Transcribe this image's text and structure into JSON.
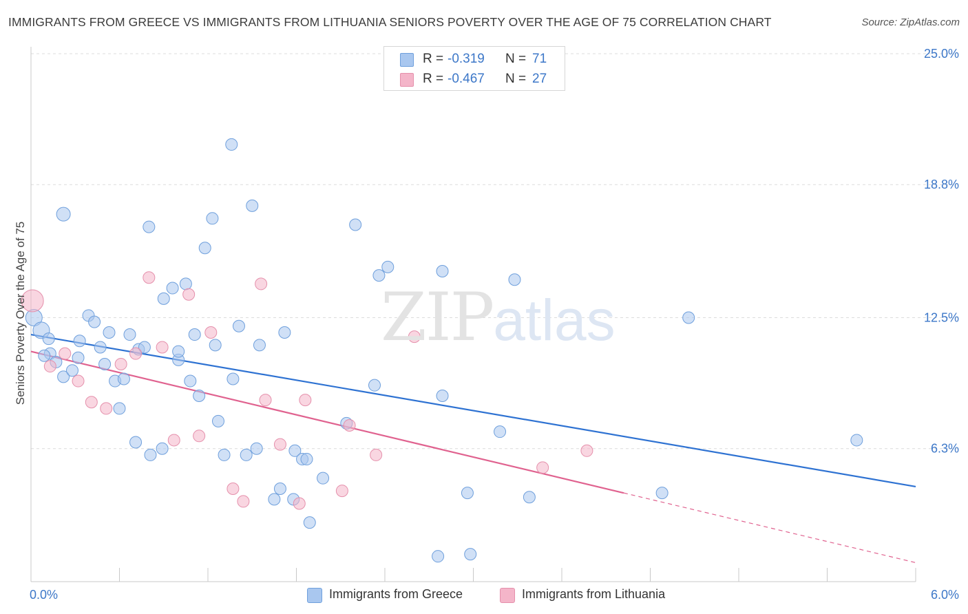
{
  "title": "IMMIGRANTS FROM GREECE VS IMMIGRANTS FROM LITHUANIA SENIORS POVERTY OVER THE AGE OF 75 CORRELATION CHART",
  "source": "Source: ZipAtlas.com",
  "watermark": {
    "zip": "ZIP",
    "atlas": "atlas"
  },
  "stats": [
    {
      "r_label": "R =",
      "r_value": "-0.319",
      "n_label": "N =",
      "n_value": "71",
      "color": "#a9c7ef"
    },
    {
      "r_label": "R =",
      "r_value": "-0.467",
      "n_label": "N =",
      "n_value": "27",
      "color": "#f4b5c9"
    }
  ],
  "legend": [
    {
      "label": "Immigrants from Greece",
      "color": "#a9c7ef"
    },
    {
      "label": "Immigrants from Lithuania",
      "color": "#f4b5c9"
    }
  ],
  "chart_data": {
    "type": "scatter",
    "title": "IMMIGRANTS FROM GREECE VS IMMIGRANTS FROM LITHUANIA SENIORS POVERTY OVER THE AGE OF 75 CORRELATION CHART",
    "xlabel": "",
    "ylabel": "Seniors Poverty Over the Age of 75",
    "xlim": [
      0,
      6.0
    ],
    "ylim": [
      0,
      25.0
    ],
    "x_tick_labels": [
      "0.0%",
      "6.0%"
    ],
    "y_ticks": [
      6.3,
      12.5,
      18.8,
      25.0
    ],
    "y_tick_labels": [
      "6.3%",
      "12.5%",
      "18.8%",
      "25.0%"
    ],
    "grid": true,
    "legend_position": "bottom-center",
    "series": [
      {
        "name": "Immigrants from Greece",
        "color": "#a9c7ef",
        "edge": "#6e9fdc",
        "line_color": "#2e72d2",
        "trend": {
          "x": [
            0,
            6.0
          ],
          "y": [
            11.7,
            4.5
          ],
          "dashed_from": null
        },
        "points": [
          [
            0.02,
            12.5
          ],
          [
            0.07,
            11.9
          ],
          [
            0.12,
            11.5
          ],
          [
            0.22,
            17.4
          ],
          [
            0.13,
            10.8
          ],
          [
            0.17,
            10.4
          ],
          [
            0.22,
            9.7
          ],
          [
            0.33,
            11.4
          ],
          [
            0.28,
            10.0
          ],
          [
            0.39,
            12.6
          ],
          [
            0.43,
            12.3
          ],
          [
            0.47,
            11.1
          ],
          [
            0.5,
            10.3
          ],
          [
            0.53,
            11.8
          ],
          [
            0.57,
            9.5
          ],
          [
            0.6,
            8.2
          ],
          [
            0.63,
            9.6
          ],
          [
            0.67,
            11.7
          ],
          [
            0.73,
            11.0
          ],
          [
            0.71,
            6.6
          ],
          [
            0.77,
            11.1
          ],
          [
            0.8,
            16.8
          ],
          [
            0.81,
            6.0
          ],
          [
            0.89,
            6.3
          ],
          [
            0.9,
            13.4
          ],
          [
            0.96,
            13.9
          ],
          [
            1.0,
            10.5
          ],
          [
            1.0,
            10.9
          ],
          [
            1.05,
            14.1
          ],
          [
            1.08,
            9.5
          ],
          [
            1.11,
            11.7
          ],
          [
            1.14,
            8.8
          ],
          [
            1.18,
            15.8
          ],
          [
            1.23,
            17.2
          ],
          [
            1.25,
            11.2
          ],
          [
            1.27,
            7.6
          ],
          [
            1.31,
            6.0
          ],
          [
            1.36,
            20.7
          ],
          [
            1.37,
            9.6
          ],
          [
            1.41,
            12.1
          ],
          [
            1.46,
            6.0
          ],
          [
            1.5,
            17.8
          ],
          [
            1.53,
            6.3
          ],
          [
            1.55,
            11.2
          ],
          [
            1.65,
            3.9
          ],
          [
            1.69,
            4.4
          ],
          [
            1.72,
            11.8
          ],
          [
            1.78,
            3.9
          ],
          [
            1.79,
            6.2
          ],
          [
            1.84,
            5.8
          ],
          [
            1.87,
            5.8
          ],
          [
            1.89,
            2.8
          ],
          [
            1.98,
            4.9
          ],
          [
            2.14,
            7.5
          ],
          [
            2.2,
            16.9
          ],
          [
            2.33,
            9.3
          ],
          [
            2.36,
            14.5
          ],
          [
            2.42,
            14.9
          ],
          [
            2.79,
            14.7
          ],
          [
            2.79,
            8.8
          ],
          [
            2.76,
            1.2
          ],
          [
            2.96,
            4.2
          ],
          [
            2.98,
            1.3
          ],
          [
            3.18,
            7.1
          ],
          [
            3.28,
            14.3
          ],
          [
            3.38,
            4.0
          ],
          [
            4.28,
            4.2
          ],
          [
            4.46,
            12.5
          ],
          [
            5.6,
            6.7
          ],
          [
            0.09,
            10.7
          ],
          [
            0.32,
            10.6
          ]
        ]
      },
      {
        "name": "Immigrants from Lithuania",
        "color": "#f4b5c9",
        "edge": "#e58fab",
        "line_color": "#e0628f",
        "trend": {
          "x": [
            0,
            6.0
          ],
          "y": [
            10.9,
            0.9
          ],
          "dashed_from": 4.02
        },
        "points": [
          [
            0.01,
            13.3
          ],
          [
            0.13,
            10.2
          ],
          [
            0.23,
            10.8
          ],
          [
            0.32,
            9.5
          ],
          [
            0.41,
            8.5
          ],
          [
            0.51,
            8.2
          ],
          [
            0.61,
            10.3
          ],
          [
            0.71,
            10.8
          ],
          [
            0.8,
            14.4
          ],
          [
            0.89,
            11.1
          ],
          [
            0.97,
            6.7
          ],
          [
            1.07,
            13.6
          ],
          [
            1.14,
            6.9
          ],
          [
            1.22,
            11.8
          ],
          [
            1.37,
            4.4
          ],
          [
            1.44,
            3.8
          ],
          [
            1.56,
            14.1
          ],
          [
            1.59,
            8.6
          ],
          [
            1.69,
            6.5
          ],
          [
            1.82,
            3.7
          ],
          [
            1.86,
            8.6
          ],
          [
            2.11,
            4.3
          ],
          [
            2.16,
            7.4
          ],
          [
            2.34,
            6.0
          ],
          [
            2.6,
            11.6
          ],
          [
            3.47,
            5.4
          ],
          [
            3.77,
            6.2
          ]
        ]
      }
    ]
  }
}
